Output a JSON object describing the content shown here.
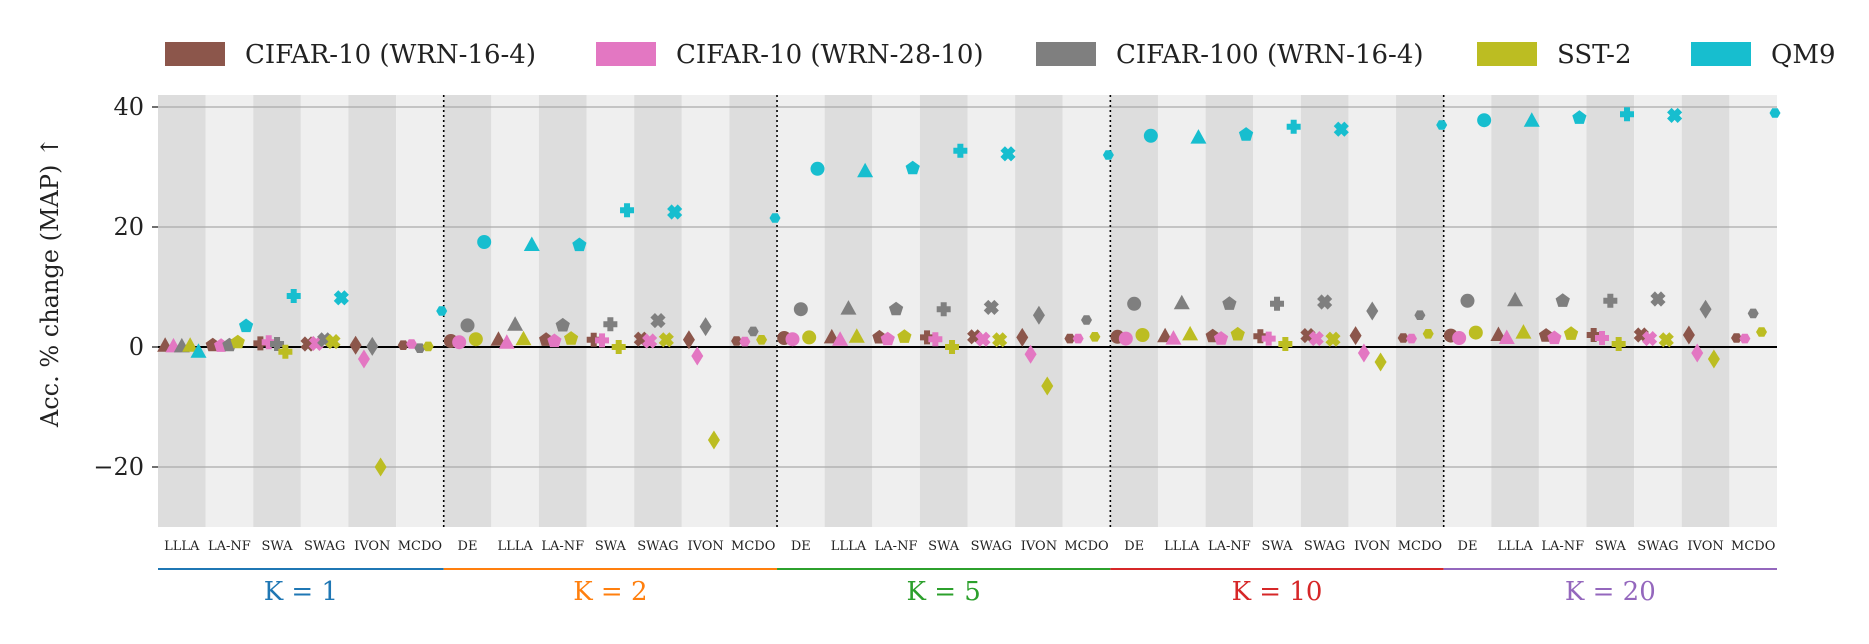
{
  "chart_data": {
    "type": "scatter",
    "ylabel": "Acc. % change (MAP) ↑",
    "ylim": [
      -30,
      42
    ],
    "yticks": [
      40,
      20,
      0,
      -20
    ],
    "ytick_labels": [
      "40",
      "20",
      "0",
      "−20"
    ],
    "series": [
      {
        "name": "CIFAR-10 (WRN-16-4)",
        "color": "#8c564b"
      },
      {
        "name": "CIFAR-10 (WRN-28-10)",
        "color": "#e377c2"
      },
      {
        "name": "CIFAR-100 (WRN-16-4)",
        "color": "#7f7f7f"
      },
      {
        "name": "SST-2",
        "color": "#bcbd22"
      },
      {
        "name": "QM9",
        "color": "#17becf"
      }
    ],
    "method_shapes": {
      "DE": "circle",
      "LLLA": "triangle",
      "LA-NF": "pentagon",
      "SWA": "plus",
      "SWAG": "cross",
      "IVON": "diamond",
      "MCDO": "hexagon"
    },
    "groups": [
      {
        "label": "K = 1",
        "color": "#1f77b4",
        "methods": [
          "LLLA",
          "LA-NF",
          "SWA",
          "SWAG",
          "IVON",
          "MCDO"
        ],
        "values": [
          [
            0.2,
            0.1,
            0.1,
            0.2,
            -0.8
          ],
          [
            0.3,
            0.2,
            0.3,
            0.8,
            3.5
          ],
          [
            0.6,
            0.8,
            0.5,
            -0.8,
            8.5
          ],
          [
            0.5,
            0.6,
            1.2,
            0.9,
            8.2
          ],
          [
            0.3,
            -2.0,
            0.1,
            -20.0,
            null
          ],
          [
            0.3,
            0.5,
            -0.2,
            0.1,
            6.0
          ]
        ]
      },
      {
        "label": "K = 2",
        "color": "#ff7f0e",
        "methods": [
          "DE",
          "LLLA",
          "LA-NF",
          "SWA",
          "SWAG",
          "IVON",
          "MCDO"
        ],
        "values": [
          [
            1.0,
            0.8,
            3.6,
            1.3,
            17.5
          ],
          [
            1.2,
            0.7,
            3.7,
            1.3,
            17.0
          ],
          [
            1.2,
            1.0,
            3.6,
            1.4,
            17.0
          ],
          [
            1.2,
            1.1,
            3.8,
            0.0,
            22.8
          ],
          [
            1.3,
            1.0,
            4.4,
            1.2,
            22.5
          ],
          [
            1.2,
            -1.5,
            3.4,
            -15.5,
            null
          ],
          [
            1.0,
            0.9,
            2.6,
            1.2,
            21.5
          ]
        ]
      },
      {
        "label": "K = 5",
        "color": "#2ca02c",
        "methods": [
          "DE",
          "LLLA",
          "LA-NF",
          "SWA",
          "SWAG",
          "IVON",
          "MCDO"
        ],
        "values": [
          [
            1.5,
            1.3,
            6.3,
            1.6,
            29.7
          ],
          [
            1.6,
            1.2,
            6.4,
            1.7,
            29.3
          ],
          [
            1.6,
            1.3,
            6.3,
            1.7,
            29.8
          ],
          [
            1.6,
            1.3,
            6.3,
            0.0,
            32.7
          ],
          [
            1.7,
            1.3,
            6.6,
            1.2,
            32.2
          ],
          [
            1.6,
            -1.2,
            5.3,
            -6.5,
            null
          ],
          [
            1.4,
            1.4,
            4.5,
            1.7,
            32.0
          ]
        ]
      },
      {
        "label": "K = 10",
        "color": "#d62728",
        "methods": [
          "DE",
          "LLLA",
          "LA-NF",
          "SWA",
          "SWAG",
          "IVON",
          "MCDO"
        ],
        "values": [
          [
            1.7,
            1.4,
            7.2,
            2.0,
            35.2
          ],
          [
            1.8,
            1.4,
            7.3,
            2.1,
            34.9
          ],
          [
            1.8,
            1.4,
            7.2,
            2.1,
            35.4
          ],
          [
            1.8,
            1.4,
            7.2,
            0.5,
            36.7
          ],
          [
            1.9,
            1.4,
            7.5,
            1.3,
            36.3
          ],
          [
            1.9,
            -1.0,
            6.0,
            -2.5,
            null
          ],
          [
            1.5,
            1.4,
            5.3,
            2.2,
            37.0
          ]
        ]
      },
      {
        "label": "K = 20",
        "color": "#9467bd",
        "methods": [
          "DE",
          "LLLA",
          "LA-NF",
          "SWA",
          "SWAG",
          "IVON",
          "MCDO"
        ],
        "values": [
          [
            1.9,
            1.5,
            7.7,
            2.4,
            37.8
          ],
          [
            2.0,
            1.5,
            7.8,
            2.4,
            37.7
          ],
          [
            1.9,
            1.5,
            7.7,
            2.2,
            38.2
          ],
          [
            2.0,
            1.5,
            7.7,
            0.5,
            38.8
          ],
          [
            2.0,
            1.4,
            8.0,
            1.2,
            38.6
          ],
          [
            2.0,
            -1.0,
            6.3,
            -2.0,
            null
          ],
          [
            1.5,
            1.4,
            5.6,
            2.5,
            39.0
          ]
        ]
      }
    ]
  }
}
